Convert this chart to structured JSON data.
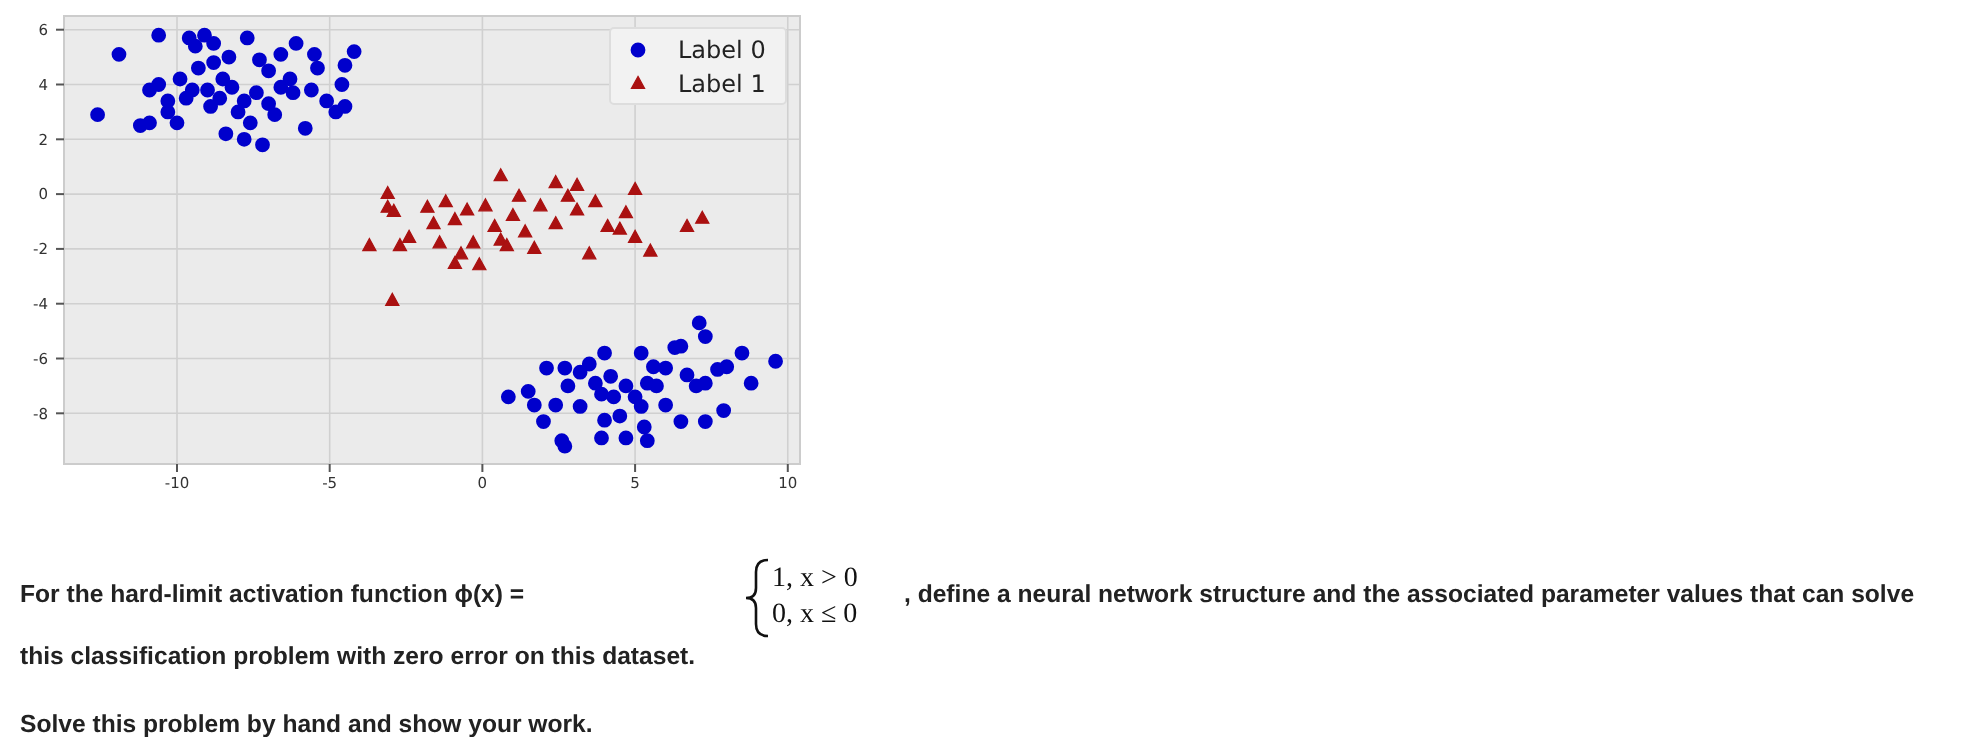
{
  "chart_data": {
    "type": "scatter",
    "xlim": [
      -13.7,
      10.4
    ],
    "ylim": [
      -9.85,
      6.5
    ],
    "xticks": [
      -10,
      -5,
      0,
      5,
      10
    ],
    "yticks": [
      -8,
      -6,
      -4,
      -2,
      0,
      2,
      4,
      6
    ],
    "grid": true,
    "legend": "top right",
    "series": [
      {
        "name": "Label 0",
        "color": "#0000cc",
        "marker": "circle",
        "x": [
          -12.6,
          -11.9,
          -10.6,
          -9.6,
          -9.1,
          -9.4,
          -8.8,
          -7.7,
          -6.1,
          -4.2,
          -4.5,
          -5.5,
          -6.6,
          -7.3,
          -8.3,
          -8.8,
          -9.3,
          -10.9,
          -10.6,
          -10.3,
          -11.2,
          -10.9,
          -10.0,
          -10.3,
          -9.7,
          -9.0,
          -8.6,
          -8.2,
          -7.8,
          -7.4,
          -7.0,
          -6.6,
          -6.2,
          -5.6,
          -5.1,
          -4.8,
          -4.6,
          -4.5,
          -5.8,
          -7.2,
          -7.8,
          -8.4,
          -8.0,
          -8.9,
          -9.5,
          -9.9,
          -7.0,
          -6.3,
          -5.4,
          -8.5,
          -7.6,
          -6.8,
          7.1,
          7.3,
          0.85,
          9.6,
          8.8,
          8.5,
          2.7,
          2.6,
          3.9,
          4.7,
          5.4,
          5.3,
          6.5,
          7.3,
          7.9,
          2.0,
          1.5,
          2.1,
          2.7,
          3.5,
          4.0,
          5.2,
          6.3,
          6.5,
          5.6,
          6.0,
          7.7,
          8.0,
          7.0,
          6.0,
          5.2,
          4.5,
          4.0,
          3.2,
          2.4,
          2.8,
          3.7,
          4.2,
          4.7,
          5.0,
          4.3,
          3.9,
          5.4,
          5.7,
          6.7,
          7.3,
          3.2,
          1.7
        ],
        "values": [
          2.9,
          5.1,
          5.8,
          5.7,
          5.8,
          5.4,
          5.5,
          5.7,
          5.5,
          5.2,
          4.7,
          5.1,
          5.1,
          4.9,
          5.0,
          4.8,
          4.6,
          3.8,
          4.0,
          3.4,
          2.5,
          2.6,
          2.6,
          3.0,
          3.5,
          3.8,
          3.5,
          3.9,
          3.4,
          3.7,
          3.3,
          3.9,
          3.7,
          3.8,
          3.4,
          3.0,
          4.0,
          3.2,
          2.4,
          1.8,
          2.0,
          2.2,
          3.0,
          3.2,
          3.8,
          4.2,
          4.5,
          4.2,
          4.6,
          4.2,
          2.6,
          2.9,
          -4.7,
          -5.2,
          -7.4,
          -6.1,
          -6.9,
          -5.8,
          -9.2,
          -9.0,
          -8.9,
          -8.9,
          -9.0,
          -8.5,
          -8.3,
          -8.3,
          -7.9,
          -8.3,
          -7.2,
          -6.35,
          -6.35,
          -6.2,
          -5.8,
          -5.8,
          -5.6,
          -5.55,
          -6.3,
          -6.35,
          -6.4,
          -6.3,
          -7.0,
          -7.7,
          -7.75,
          -8.1,
          -8.25,
          -7.75,
          -7.7,
          -7.0,
          -6.9,
          -6.65,
          -7.0,
          -7.4,
          -7.4,
          -7.3,
          -6.9,
          -7.0,
          -6.6,
          -6.9,
          -6.5,
          -7.7
        ]
      },
      {
        "name": "Label 1",
        "color": "#aa1111",
        "marker": "triangle",
        "x": [
          -3.1,
          -3.1,
          -2.9,
          -3.7,
          -2.95,
          -2.7,
          -2.4,
          -1.8,
          -1.2,
          0.6,
          2.4,
          3.1,
          5.0,
          6.7,
          7.2,
          5.5,
          3.5,
          -0.1,
          -0.9,
          -1.4,
          1.7,
          4.1,
          5.0,
          4.7,
          3.7,
          2.8,
          1.9,
          1.0,
          0.4,
          -0.3,
          -0.9,
          1.4,
          2.4,
          0.6,
          -0.5,
          3.1,
          4.5,
          1.2,
          0.1,
          0.8,
          -0.7,
          -1.6
        ],
        "values": [
          0,
          -0.5,
          -0.65,
          -1.9,
          -3.9,
          -1.9,
          -1.6,
          -0.5,
          -0.3,
          0.65,
          0.4,
          0.3,
          0.15,
          -1.2,
          -0.9,
          -2.1,
          -2.2,
          -2.6,
          -2.55,
          -1.8,
          -2.0,
          -1.2,
          -1.6,
          -0.7,
          -0.3,
          -0.1,
          -0.45,
          -0.8,
          -1.2,
          -1.8,
          -0.95,
          -1.4,
          -1.1,
          -1.7,
          -0.6,
          -0.6,
          -1.3,
          -0.1,
          -0.45,
          -1.9,
          -2.2,
          -1.1
        ]
      }
    ],
    "annotations": [
      "For the hard-limit activation function ϕ(x) =",
      "1,    x > 0",
      "0,    x ≤ 0",
      ", define a neural network structure and the associated parameter values that can solve",
      "this classification problem with zero error on this dataset.",
      "Solve this problem by hand and show your work."
    ]
  }
}
